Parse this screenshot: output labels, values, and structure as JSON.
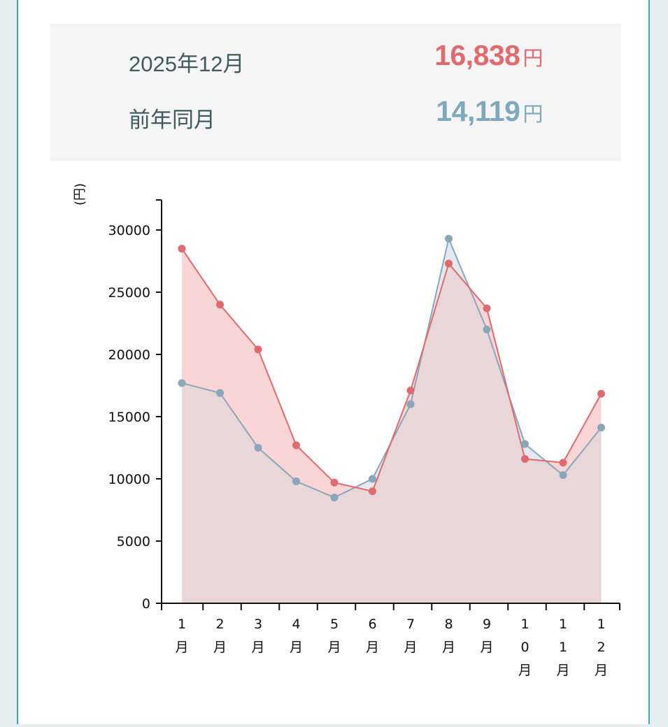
{
  "summary": {
    "current": {
      "label": "2025年12月",
      "value": "16,838",
      "unit": "円"
    },
    "previous": {
      "label": "前年同月",
      "value": "14,119",
      "unit": "円"
    }
  },
  "colors": {
    "current": "#e06a6e",
    "previous": "#8aa6ba",
    "current_fill": "#f9d6d5",
    "overlap_fill": "#e8d6d9",
    "previous_fill": "#e4e9ef"
  },
  "chart_data": {
    "type": "area",
    "ylabel": "(円)",
    "categories": [
      "1月",
      "2月",
      "3月",
      "4月",
      "5月",
      "6月",
      "7月",
      "8月",
      "9月",
      "10月",
      "11月",
      "12月"
    ],
    "ylim": [
      0,
      32500
    ],
    "yticks": [
      0,
      5000,
      10000,
      15000,
      20000,
      25000,
      30000
    ],
    "series": [
      {
        "name": "2025年",
        "values": [
          28500,
          24000,
          20400,
          12700,
          9700,
          9000,
          17100,
          27300,
          23700,
          11600,
          11300,
          16838
        ]
      },
      {
        "name": "前年同月",
        "values": [
          17700,
          16900,
          12500,
          9800,
          8500,
          10000,
          16000,
          29300,
          22000,
          12800,
          10300,
          14119
        ]
      }
    ]
  }
}
